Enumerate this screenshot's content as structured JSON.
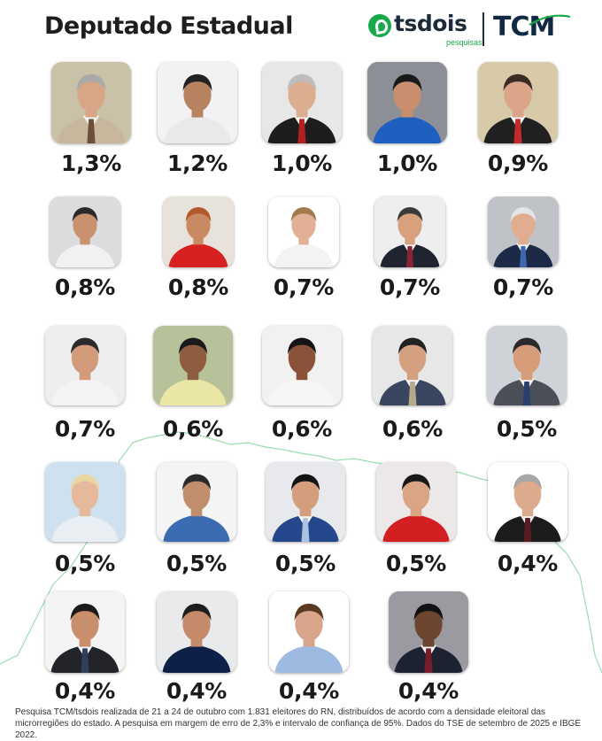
{
  "title": "Deputado Estadual",
  "logos": {
    "ts_name": "tsdois",
    "ts_sub": "pesquisas",
    "tcm": "TCM",
    "colors": {
      "ts_green": "#19a84b",
      "navy": "#102a44"
    }
  },
  "candidates": [
    {
      "pct": "1,3%",
      "bg": "#c9c2a8",
      "skin": "#d8a585",
      "hair": "#a9a9a9",
      "suit": "#c8b79c",
      "tie": "#6b4f3a"
    },
    {
      "pct": "1,2%",
      "bg": "#f2f2f2",
      "skin": "#b7825f",
      "hair": "#222",
      "suit": "#e9e9e9",
      "tie": "none"
    },
    {
      "pct": "1,0%",
      "bg": "#e7e7e7",
      "skin": "#dcae90",
      "hair": "#bdbdbd",
      "suit": "#1d1d1d",
      "tie": "#b0201e"
    },
    {
      "pct": "1,0%",
      "bg": "#8c8f96",
      "skin": "#c98e6d",
      "hair": "#1a1a1a",
      "suit": "#1f5fbf",
      "tie": "none"
    },
    {
      "pct": "0,9%",
      "bg": "#d8c9a8",
      "skin": "#dba589",
      "hair": "#3a2c24",
      "suit": "#202020",
      "tie": "#c42a2a"
    },
    {
      "pct": "0,8%",
      "bg": "#dcdcdc",
      "skin": "#c9916f",
      "hair": "#2a2a2a",
      "suit": "#f1f1f1",
      "tie": "none"
    },
    {
      "pct": "0,8%",
      "bg": "#e8e3da",
      "skin": "#c98a63",
      "hair": "#b45a2a",
      "suit": "#d92020",
      "tie": "none"
    },
    {
      "pct": "0,7%",
      "bg": "#ffffff",
      "skin": "#e1b096",
      "hair": "#a27a4b",
      "suit": "#f3f3f3",
      "tie": "none"
    },
    {
      "pct": "0,7%",
      "bg": "#eeeeee",
      "skin": "#d9a07e",
      "hair": "#3a3a3a",
      "suit": "#1f2430",
      "tie": "#8a2434"
    },
    {
      "pct": "0,7%",
      "bg": "#bfc3c8",
      "skin": "#e1ad90",
      "hair": "#e5e5e5",
      "suit": "#1c2a48",
      "tie": "#3d68b0"
    },
    {
      "pct": "0,7%",
      "bg": "#eeeeee",
      "skin": "#d29c7a",
      "hair": "#2b2b2b",
      "suit": "#f4f4f4",
      "tie": "none"
    },
    {
      "pct": "0,6%",
      "bg": "#b8c29a",
      "skin": "#8e5c3e",
      "hair": "#1a1a1a",
      "suit": "#e9e6a6",
      "tie": "none"
    },
    {
      "pct": "0,6%",
      "bg": "#f1f1f1",
      "skin": "#8a5238",
      "hair": "#141414",
      "suit": "#f6f6f6",
      "tie": "none"
    },
    {
      "pct": "0,6%",
      "bg": "#e7e7e7",
      "skin": "#d5a07f",
      "hair": "#222",
      "suit": "#3a4660",
      "tie": "#b7a889"
    },
    {
      "pct": "0,5%",
      "bg": "#cfd2d6",
      "skin": "#d79d7b",
      "hair": "#2a2a2a",
      "suit": "#4a4f58",
      "tie": "#2b3f6e"
    },
    {
      "pct": "0,5%",
      "bg": "#cfe1ef",
      "skin": "#e6b89c",
      "hair": "#e9d7a2",
      "suit": "#e9eef3",
      "tie": "none"
    },
    {
      "pct": "0,5%",
      "bg": "#f4f4f4",
      "skin": "#c08e6c",
      "hair": "#2a2a2a",
      "suit": "#3b6bb0",
      "tie": "none"
    },
    {
      "pct": "0,5%",
      "bg": "#e7e9ec",
      "skin": "#d49e7d",
      "hair": "#121212",
      "suit": "#25488d",
      "tie": "#a9c1e3"
    },
    {
      "pct": "0,5%",
      "bg": "#ece8e8",
      "skin": "#d9a585",
      "hair": "#181818",
      "suit": "#d31f22",
      "tie": "none"
    },
    {
      "pct": "0,4%",
      "bg": "#ffffff",
      "skin": "#dcaa8c",
      "hair": "#a7a7a7",
      "suit": "#1c1c1c",
      "tie": "#5a1a22"
    },
    {
      "pct": "0,4%",
      "bg": "#f4f4f4",
      "skin": "#c98f6c",
      "hair": "#1a1a1a",
      "suit": "#22242a",
      "tie": "#2e3e5c"
    },
    {
      "pct": "0,4%",
      "bg": "#e9eaec",
      "skin": "#c58a69",
      "hair": "#1e1e1e",
      "suit": "#0f2048",
      "tie": "none"
    },
    {
      "pct": "0,4%",
      "bg": "#ffffff",
      "skin": "#d8a48a",
      "hair": "#5a3a22",
      "suit": "#9dbbe0",
      "tie": "none"
    },
    {
      "pct": "0,4%",
      "bg": "#9a9aa0",
      "skin": "#6e452f",
      "hair": "#121212",
      "suit": "#1c2230",
      "tie": "#7a1d2a"
    }
  ],
  "footer": "Pesquisa TCM/tsdois realizada de 21 a 24 de outubro com 1.831 eleitores do RN, distribuídos de acordo com a densidade eleitoral das microrregiões do estado. A pesquisa em margem de erro de 2,3% e intervalo de confiança de 95%. Dados do TSE de setembro de 2025 e IBGE 2022."
}
